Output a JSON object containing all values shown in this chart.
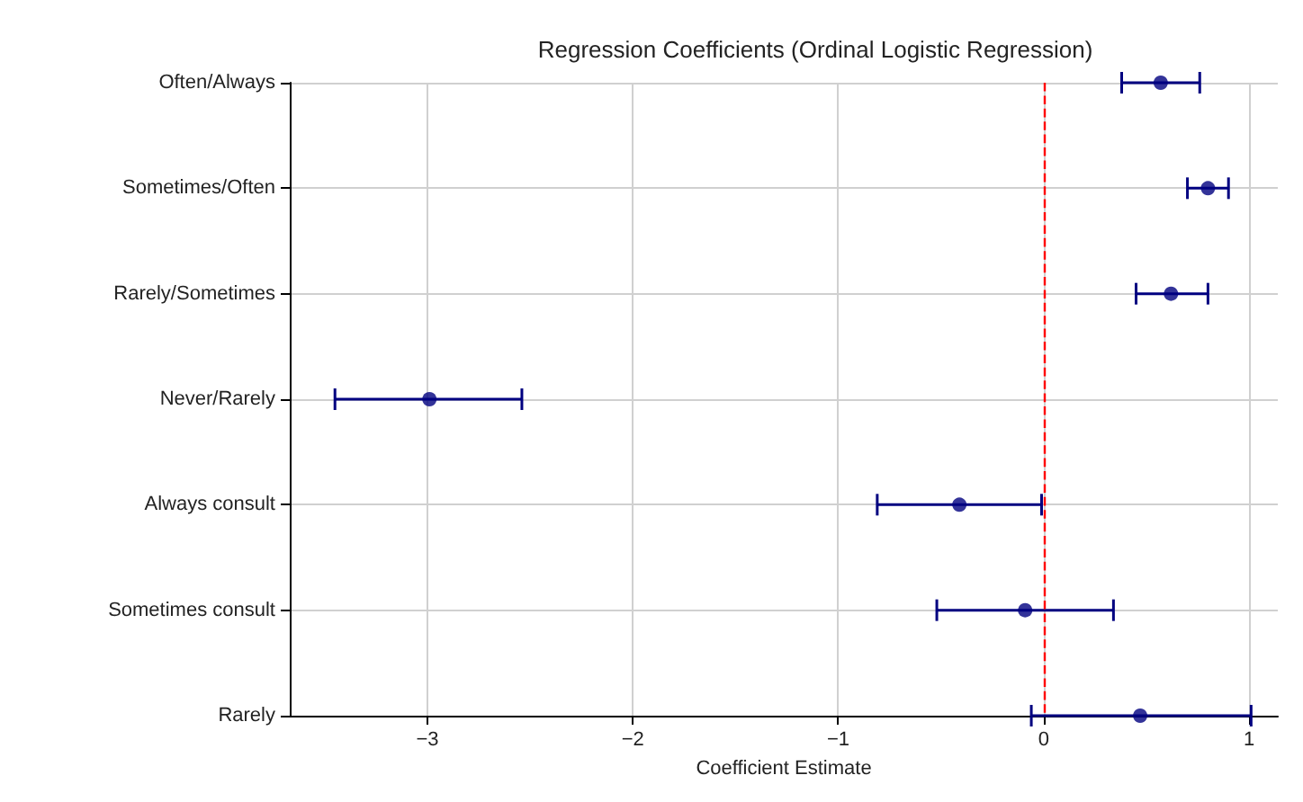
{
  "chart_data": {
    "type": "scatter",
    "title": "Regression Coefficients (Ordinal Logistic Regression)",
    "xlabel": "Coefficient Estimate",
    "orientation": "horizontal",
    "categories": [
      "Often/Always",
      "Sometimes/Often",
      "Rarely/Sometimes",
      "Never/Rarely",
      "Always consult",
      "Sometimes consult",
      "Rarely"
    ],
    "series": [
      {
        "color": "#000080",
        "values": [
          0.57,
          0.8,
          0.62,
          -2.99,
          -0.41,
          -0.09,
          0.47
        ],
        "errors": [
          [
            0.38,
            0.76
          ],
          [
            0.7,
            0.9
          ],
          [
            0.45,
            0.8
          ],
          [
            -3.45,
            -2.54
          ],
          [
            -0.81,
            -0.01
          ],
          [
            -0.52,
            0.34
          ],
          [
            -0.06,
            1.01
          ]
        ]
      }
    ],
    "xlim": [
      -3.67,
      1.14
    ],
    "xticks": [
      {
        "value": -3,
        "label": "−3"
      },
      {
        "value": -2,
        "label": "−2"
      },
      {
        "value": -1,
        "label": "−1"
      },
      0,
      1
    ],
    "ref_lines": [
      {
        "axis": "x",
        "value": 0,
        "color": "#ff0000",
        "line_style": "dashed"
      }
    ],
    "grid": true,
    "marker": "circle"
  }
}
